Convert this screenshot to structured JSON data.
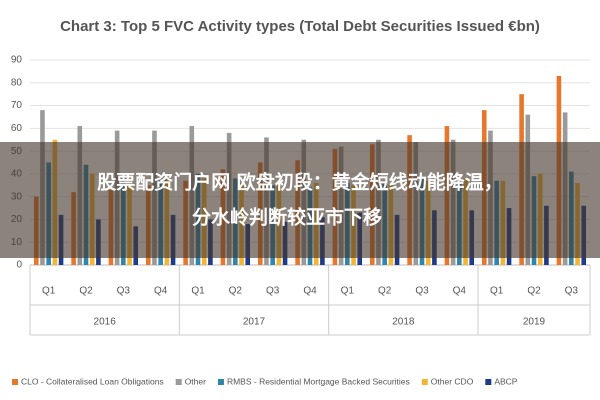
{
  "chart_data": {
    "type": "bar",
    "title": "Chart 3: Top 5 FVC Activity types (Total Debt Securities Issued €bn)",
    "groups": [
      {
        "name": "2016",
        "categories": [
          "Q1",
          "Q2",
          "Q3",
          "Q4"
        ]
      },
      {
        "name": "2017",
        "categories": [
          "Q1",
          "Q2",
          "Q3",
          "Q4"
        ]
      },
      {
        "name": "2018",
        "categories": [
          "Q1",
          "Q2",
          "Q3",
          "Q4"
        ]
      },
      {
        "name": "2019",
        "categories": [
          "Q1",
          "Q2",
          "Q3"
        ]
      }
    ],
    "series": [
      {
        "name": "CLO - Collateralised Loan Obligations",
        "color": "#e8772e",
        "values": [
          30,
          32,
          33,
          35,
          37,
          42,
          45,
          46,
          51,
          53,
          57,
          61,
          68,
          75,
          83
        ]
      },
      {
        "name": "Other",
        "color": "#9a9a9a",
        "values": [
          68,
          61,
          59,
          59,
          61,
          58,
          56,
          55,
          52,
          55,
          54,
          55,
          59,
          66,
          67
        ]
      },
      {
        "name": "RMBS - Residential Mortgage Backed Securities",
        "color": "#2e86ab",
        "values": [
          45,
          44,
          38,
          38,
          40,
          38,
          35,
          34,
          36,
          36,
          38,
          36,
          37,
          39,
          41
        ]
      },
      {
        "name": "Other CDO",
        "color": "#f2b632",
        "values": [
          55,
          40,
          37,
          38,
          38,
          36,
          35,
          36,
          35,
          36,
          37,
          38,
          37,
          40,
          36
        ]
      },
      {
        "name": "ABCP",
        "color": "#1f3c88",
        "values": [
          22,
          20,
          17,
          22,
          20,
          18,
          19,
          21,
          23,
          22,
          24,
          24,
          25,
          26,
          26
        ]
      }
    ],
    "ylim": [
      0,
      90
    ],
    "yticks": [
      0,
      10,
      20,
      30,
      40,
      50,
      60,
      70,
      80,
      90
    ],
    "grid": true,
    "legend": "bottom"
  },
  "overlay": {
    "lines": [
      "股票配资门户网 欧盘初段：黄金短线动能降温，",
      "分水岭判断较亚市下移"
    ]
  }
}
